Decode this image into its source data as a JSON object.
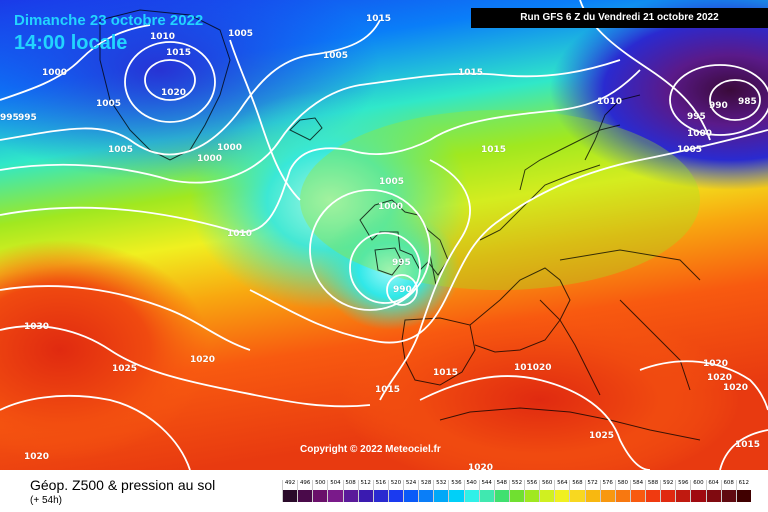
{
  "header": {
    "date": "Dimanche 23 octobre 2022",
    "local_time": "14:00 locale",
    "run": "Run GFS 6 Z du Vendredi 21 octobre 2022"
  },
  "copyright": "Copyright © 2022 Meteociel.fr",
  "footer": {
    "title": "Géop. Z500 & pression au sol",
    "forecast_hour": "(+ 54h)"
  },
  "legend": {
    "values": [
      "492",
      "496",
      "500",
      "504",
      "508",
      "512",
      "516",
      "520",
      "524",
      "528",
      "532",
      "536",
      "540",
      "544",
      "548",
      "552",
      "556",
      "560",
      "564",
      "568",
      "572",
      "576",
      "580",
      "584",
      "588",
      "592",
      "596",
      "600",
      "604",
      "608",
      "612"
    ],
    "colors": [
      "#2a0a2a",
      "#4a0a4a",
      "#6a106a",
      "#7a1a8a",
      "#5a1a9a",
      "#3a1ab0",
      "#2a2ad0",
      "#1a3af0",
      "#0a5af8",
      "#0a7ef8",
      "#00a8f8",
      "#00d0f8",
      "#30f0e8",
      "#40e8b0",
      "#40e070",
      "#70e030",
      "#a0e820",
      "#d0f020",
      "#f0f020",
      "#f8d820",
      "#f8b810",
      "#f89810",
      "#f87810",
      "#f85a10",
      "#f03a10",
      "#e02a10",
      "#c01a10",
      "#a00a10",
      "#800a10",
      "#600a10",
      "#400000"
    ]
  },
  "pressure_labels": [
    {
      "text": "1015",
      "id": "t1"
    },
    {
      "text": "1010",
      "id": "t2"
    },
    {
      "text": "1005",
      "id": "t3"
    },
    {
      "text": "1015",
      "id": "t4"
    },
    {
      "text": "1000",
      "id": "t5"
    },
    {
      "text": "1020",
      "id": "t6"
    },
    {
      "text": "1005",
      "id": "t7"
    },
    {
      "text": "1005",
      "id": "t8"
    },
    {
      "text": "995",
      "id": "t9"
    },
    {
      "text": "995",
      "id": "t10"
    },
    {
      "text": "1005",
      "id": "t11"
    },
    {
      "text": "1000",
      "id": "t12"
    },
    {
      "text": "1000",
      "id": "t13"
    },
    {
      "text": "1015",
      "id": "t14"
    },
    {
      "text": "1010",
      "id": "t15"
    },
    {
      "text": "990",
      "id": "t16"
    },
    {
      "text": "985",
      "id": "t17"
    },
    {
      "text": "995",
      "id": "t18"
    },
    {
      "text": "1000",
      "id": "t19"
    },
    {
      "text": "1005",
      "id": "t20"
    },
    {
      "text": "1015",
      "id": "t21"
    },
    {
      "text": "1005",
      "id": "t22"
    },
    {
      "text": "1000",
      "id": "t23"
    },
    {
      "text": "1010",
      "id": "t24"
    },
    {
      "text": "995",
      "id": "t25"
    },
    {
      "text": "990",
      "id": "t26"
    },
    {
      "text": "1030",
      "id": "t27"
    },
    {
      "text": "1020",
      "id": "t28"
    },
    {
      "text": "1025",
      "id": "t29"
    },
    {
      "text": "1015",
      "id": "t30"
    },
    {
      "text": "1015",
      "id": "t31"
    },
    {
      "text": "101020",
      "id": "t32"
    },
    {
      "text": "1020",
      "id": "t33"
    },
    {
      "text": "1020",
      "id": "t34"
    },
    {
      "text": "1020",
      "id": "t35"
    },
    {
      "text": "1025",
      "id": "t36"
    },
    {
      "text": "1015",
      "id": "t37"
    },
    {
      "text": "1020",
      "id": "t38"
    },
    {
      "text": "1020",
      "id": "t39"
    }
  ]
}
